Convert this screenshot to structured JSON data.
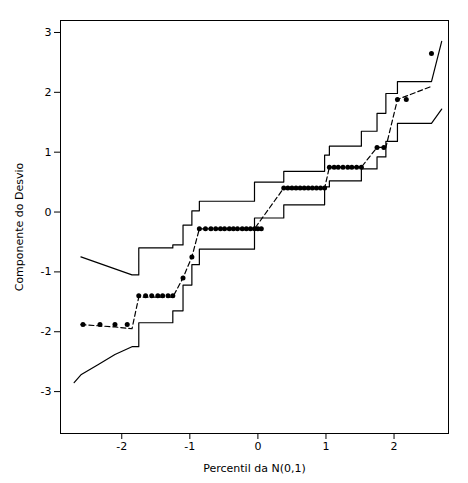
{
  "chart_data": {
    "type": "scatter",
    "xlabel": "Percentil da N(0,1)",
    "ylabel": "Componente do Desvio",
    "xlim": [
      -2.9,
      2.8
    ],
    "ylim": [
      -3.7,
      3.2
    ],
    "xticks": [
      -2,
      -1,
      0,
      1,
      2
    ],
    "yticks": [
      -3,
      -2,
      -1,
      0,
      1,
      2,
      3
    ],
    "grid": false,
    "series": [
      {
        "type": "line",
        "color": "#000000",
        "line_style": "solid",
        "x": [
          -2.6,
          -2.35,
          -2.1,
          -1.85,
          -1.75,
          -1.75,
          -1.25,
          -1.25,
          -1.1,
          -1.1,
          -0.97,
          -0.97,
          -0.86,
          -0.86,
          -0.05,
          -0.05,
          0.38,
          0.38,
          0.98,
          0.98,
          1.05,
          1.05,
          1.52,
          1.52,
          1.75,
          1.75,
          1.88,
          1.88,
          2.05,
          2.05,
          2.55,
          2.7
        ],
        "values": [
          -0.75,
          -0.85,
          -0.95,
          -1.05,
          -1.05,
          -0.6,
          -0.6,
          -0.55,
          -0.55,
          -0.22,
          -0.22,
          0.02,
          0.02,
          0.18,
          0.18,
          0.5,
          0.5,
          0.68,
          0.68,
          0.95,
          0.95,
          1.1,
          1.1,
          1.35,
          1.35,
          1.65,
          1.65,
          1.98,
          1.98,
          2.18,
          2.18,
          2.85
        ]
      },
      {
        "type": "line",
        "color": "#000000",
        "line_style": "solid",
        "x": [
          -2.7,
          -2.6,
          -2.35,
          -2.1,
          -1.85,
          -1.75,
          -1.75,
          -1.25,
          -1.25,
          -1.1,
          -1.1,
          -0.97,
          -0.97,
          -0.86,
          -0.86,
          -0.05,
          -0.05,
          0.38,
          0.38,
          0.98,
          0.98,
          1.05,
          1.05,
          1.52,
          1.52,
          1.75,
          1.75,
          1.88,
          1.88,
          2.05,
          2.05,
          2.55,
          2.7
        ],
        "values": [
          -2.85,
          -2.72,
          -2.55,
          -2.38,
          -2.25,
          -2.25,
          -1.85,
          -1.85,
          -1.65,
          -1.65,
          -1.22,
          -1.22,
          -0.88,
          -0.88,
          -0.62,
          -0.62,
          -0.1,
          -0.1,
          0.12,
          0.12,
          0.42,
          0.42,
          0.52,
          0.52,
          0.72,
          0.72,
          0.92,
          0.92,
          1.18,
          1.18,
          1.48,
          1.48,
          1.72
        ]
      },
      {
        "type": "line",
        "color": "#000000",
        "line_style": "dashed",
        "x": [
          -2.6,
          -2.35,
          -2.1,
          -1.85,
          -1.75,
          -1.25,
          -1.1,
          -0.97,
          -0.86,
          -0.05,
          0.38,
          0.98,
          1.05,
          1.52,
          1.75,
          1.88,
          2.05,
          2.55
        ],
        "values": [
          -1.88,
          -1.9,
          -1.92,
          -1.95,
          -1.42,
          -1.42,
          -1.1,
          -0.75,
          -0.28,
          -0.28,
          0.4,
          0.4,
          0.75,
          0.75,
          1.08,
          1.08,
          1.88,
          2.1
        ]
      },
      {
        "type": "scatter",
        "color": "#000000",
        "marker": "circle",
        "x": [
          -2.57,
          -2.32,
          -2.1,
          -1.92,
          -1.75,
          -1.65,
          -1.56,
          -1.47,
          -1.4,
          -1.32,
          -1.25,
          -1.1,
          -0.97,
          -0.86,
          -0.77,
          -0.69,
          -0.62,
          -0.55,
          -0.49,
          -0.42,
          -0.36,
          -0.3,
          -0.23,
          -0.17,
          -0.11,
          -0.05,
          0.0,
          0.05,
          0.38,
          0.44,
          0.5,
          0.56,
          0.62,
          0.68,
          0.74,
          0.8,
          0.86,
          0.92,
          0.98,
          1.05,
          1.12,
          1.18,
          1.25,
          1.32,
          1.38,
          1.45,
          1.52,
          1.75,
          1.85,
          2.05,
          2.18,
          2.55
        ],
        "values": [
          -1.88,
          -1.88,
          -1.88,
          -1.88,
          -1.4,
          -1.4,
          -1.4,
          -1.4,
          -1.4,
          -1.4,
          -1.4,
          -1.1,
          -0.75,
          -0.28,
          -0.28,
          -0.28,
          -0.28,
          -0.28,
          -0.28,
          -0.28,
          -0.28,
          -0.28,
          -0.28,
          -0.28,
          -0.28,
          -0.28,
          -0.28,
          -0.28,
          0.4,
          0.4,
          0.4,
          0.4,
          0.4,
          0.4,
          0.4,
          0.4,
          0.4,
          0.4,
          0.4,
          0.75,
          0.75,
          0.75,
          0.75,
          0.75,
          0.75,
          0.75,
          0.75,
          1.08,
          1.08,
          1.88,
          1.88,
          2.65
        ]
      }
    ]
  }
}
